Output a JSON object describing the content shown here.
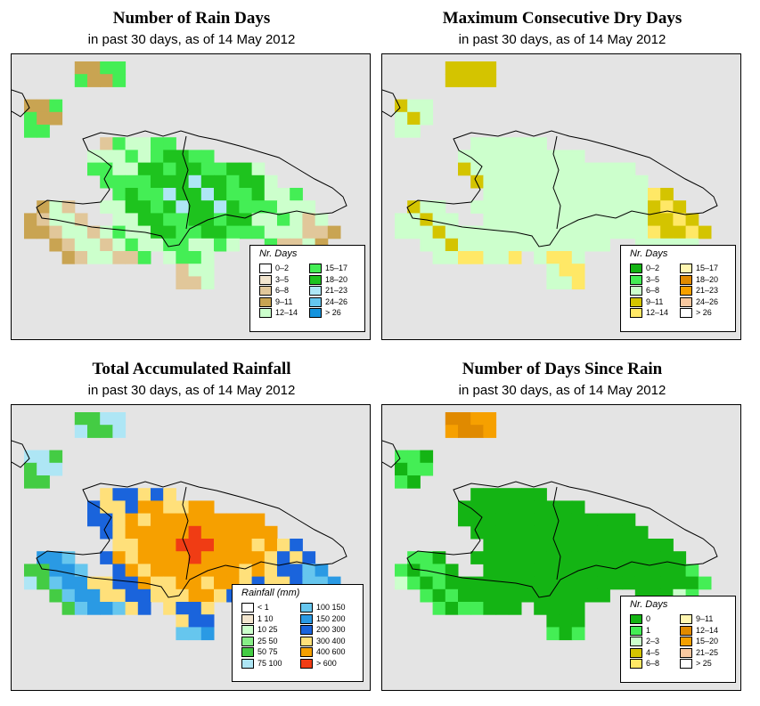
{
  "panels": [
    {
      "id": "rain-days",
      "title": "Number of Rain Days",
      "subtitle": "in past 30 days, as of  14 May 2012",
      "legend": {
        "title": "Nr. Days",
        "items": [
          {
            "label": "0–2",
            "color": "#ffffff"
          },
          {
            "label": "3–5",
            "color": "#f3e6cf"
          },
          {
            "label": "6–8",
            "color": "#e1c79a"
          },
          {
            "label": "9–11",
            "color": "#c9a452"
          },
          {
            "label": "12–14",
            "color": "#ccffcc"
          },
          {
            "label": "15–17",
            "color": "#44ee55"
          },
          {
            "label": "18–20",
            "color": "#1ec31e"
          },
          {
            "label": "21–23",
            "color": "#aee6f5"
          },
          {
            "label": "24–26",
            "color": "#66c6ee"
          },
          {
            "label": "> 26",
            "color": "#1493dd"
          }
        ]
      }
    },
    {
      "id": "max-dry-days",
      "title": "Maximum Consecutive Dry Days",
      "subtitle": "in past 30 days, as of  14 May 2012",
      "legend": {
        "title": "Nr. Days",
        "items": [
          {
            "label": "0–2",
            "color": "#14b414"
          },
          {
            "label": "3–5",
            "color": "#44ee55"
          },
          {
            "label": "6–8",
            "color": "#ccffcc"
          },
          {
            "label": "9–11",
            "color": "#d4c400"
          },
          {
            "label": "12–14",
            "color": "#ffe866"
          },
          {
            "label": "15–17",
            "color": "#fff6b0"
          },
          {
            "label": "18–20",
            "color": "#e08a00"
          },
          {
            "label": "21–23",
            "color": "#f6a000"
          },
          {
            "label": "24–26",
            "color": "#f8c8a0"
          },
          {
            "label": "> 26",
            "color": "#ffffff"
          }
        ]
      }
    },
    {
      "id": "total-rainfall",
      "title": "Total Accumulated Rainfall",
      "subtitle": "in past 30 days, as of  14 May 2012",
      "legend": {
        "title": "Rainfall (mm)",
        "items": [
          {
            "label": "< 1",
            "color": "#ffffff"
          },
          {
            "label": "1   10",
            "color": "#f3e6cf"
          },
          {
            "label": "10   25",
            "color": "#ccffcc"
          },
          {
            "label": "25   50",
            "color": "#88ee88"
          },
          {
            "label": "50   75",
            "color": "#44cc44"
          },
          {
            "label": "75   100",
            "color": "#aee6f5"
          },
          {
            "label": "100   150",
            "color": "#66c6ee"
          },
          {
            "label": "150   200",
            "color": "#2a9ae4"
          },
          {
            "label": "200   300",
            "color": "#1a64dc"
          },
          {
            "label": "300   400",
            "color": "#ffe07a"
          },
          {
            "label": "400   600",
            "color": "#f6a000"
          },
          {
            "label": "> 600",
            "color": "#f03c14"
          }
        ]
      }
    },
    {
      "id": "days-since-rain",
      "title": "Number of Days Since Rain",
      "subtitle": "in past 30 days, as of  14 May 2012",
      "legend": {
        "title": "Nr. Days",
        "items": [
          {
            "label": "0",
            "color": "#14b414"
          },
          {
            "label": "1",
            "color": "#44ee55"
          },
          {
            "label": "2–3",
            "color": "#ccffcc"
          },
          {
            "label": "4–5",
            "color": "#d4c400"
          },
          {
            "label": "6–8",
            "color": "#ffe866"
          },
          {
            "label": "9–11",
            "color": "#fff6b0"
          },
          {
            "label": "12–14",
            "color": "#e08a00"
          },
          {
            "label": "15–20",
            "color": "#f6a000"
          },
          {
            "label": "21–25",
            "color": "#f8c8a0"
          },
          {
            "label": "> 25",
            "color": "#ffffff"
          }
        ]
      }
    }
  ]
}
